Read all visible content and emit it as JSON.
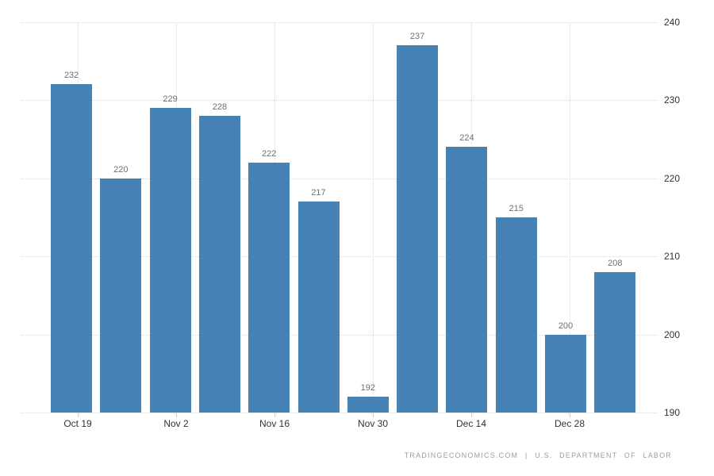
{
  "chart_data": {
    "type": "bar",
    "title": "",
    "values": [
      232,
      220,
      229,
      228,
      222,
      217,
      192,
      237,
      224,
      215,
      200,
      208
    ],
    "value_labels": [
      "232",
      "220",
      "229",
      "228",
      "222",
      "217",
      "192",
      "237",
      "224",
      "215",
      "200",
      "208"
    ],
    "x_tick_labels": [
      "Oct 19",
      "Nov 2",
      "Nov 16",
      "Nov 30",
      "Dec 14",
      "Dec 28"
    ],
    "x_tick_every_n_bars": 2,
    "y_ticks": [
      190,
      200,
      210,
      220,
      230,
      240
    ],
    "ylim": [
      190,
      240
    ],
    "grid": true,
    "legend": false,
    "value_labels_shown": true,
    "colors": {
      "bar": "#4682b4",
      "value_label": "#707070",
      "axis_label": "#333333",
      "grid_line": "#d8d8d8",
      "tick_mark": "#cccccc",
      "attribution": "#9c9c9c"
    }
  },
  "footer": {
    "source_text": "TRADINGECONOMICS.COM | U.S. DEPARTMENT OF LABOR"
  }
}
